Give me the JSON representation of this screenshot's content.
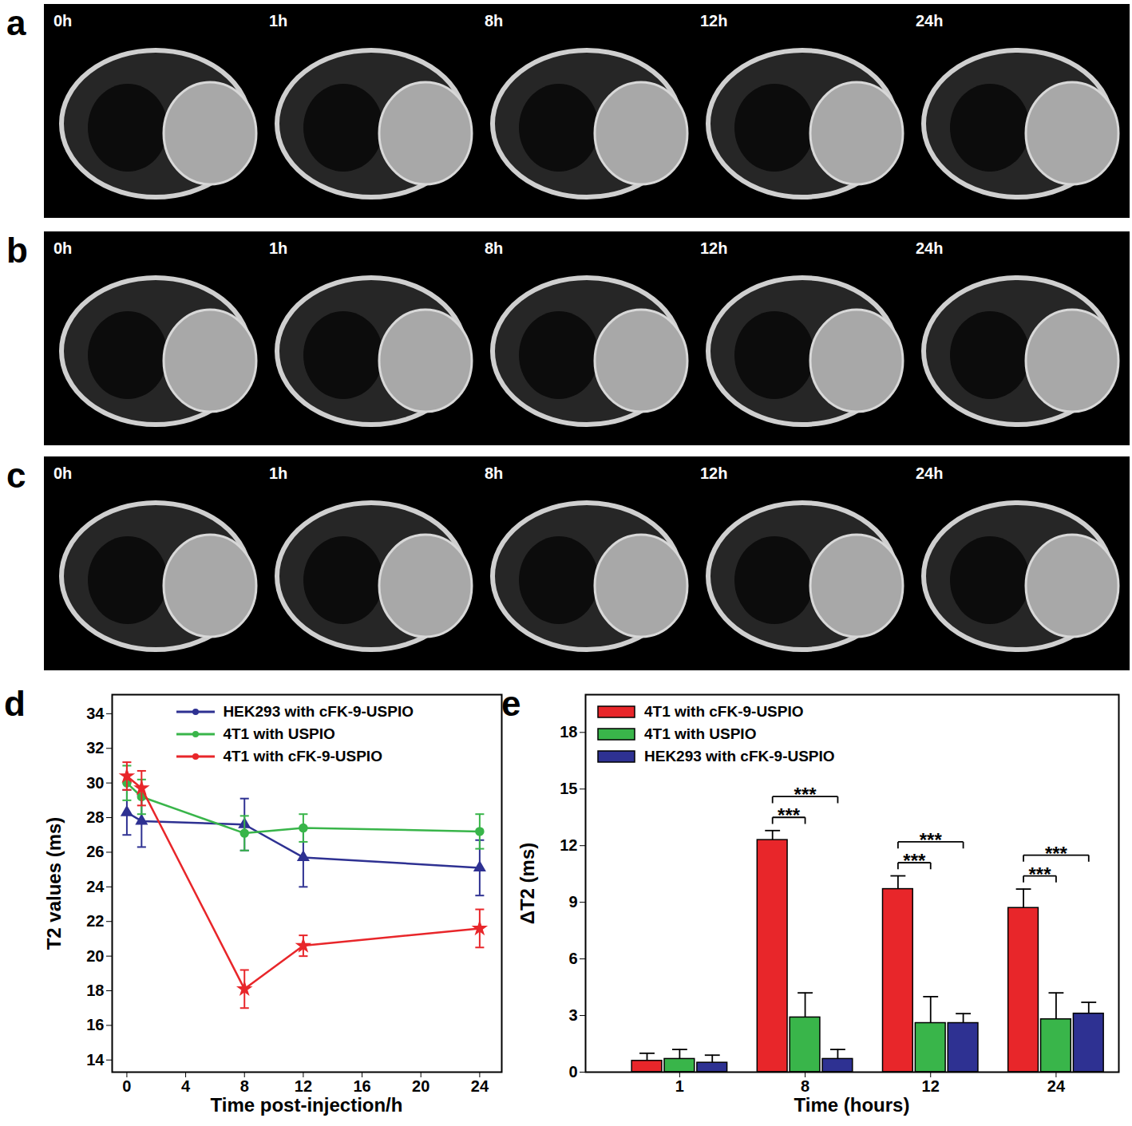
{
  "panels": [
    {
      "label": "a",
      "times": [
        "0h",
        "1h",
        "8h",
        "12h",
        "24h"
      ]
    },
    {
      "label": "b",
      "times": [
        "0h",
        "1h",
        "8h",
        "12h",
        "24h"
      ]
    },
    {
      "label": "c",
      "times": [
        "0h",
        "1h",
        "8h",
        "12h",
        "24h"
      ]
    }
  ],
  "chart_data": [
    {
      "panel": "d",
      "type": "line",
      "x": [
        0,
        1,
        8,
        12,
        24
      ],
      "xlim": [
        -1,
        25.5
      ],
      "xticks": [
        0,
        4,
        8,
        12,
        16,
        20,
        24
      ],
      "ylim": [
        13.3,
        35.1
      ],
      "yticks": [
        14,
        16,
        18,
        20,
        22,
        24,
        26,
        28,
        30,
        32,
        34
      ],
      "xlabel": "Time post-injection/h",
      "ylabel": "T2 values (ms)",
      "legend": "upper right",
      "series": [
        {
          "name": "HEK293 with cFK-9-USPIO",
          "color": "#2e3192",
          "marker": "triangle",
          "values": [
            28.3,
            27.8,
            27.6,
            25.7,
            25.1
          ],
          "errors": [
            1.3,
            1.5,
            1.5,
            1.7,
            1.6
          ]
        },
        {
          "name": "4T1 with USPIO",
          "color": "#39b54a",
          "marker": "circle",
          "values": [
            30.0,
            29.2,
            27.1,
            27.4,
            27.2
          ],
          "errors": [
            1.0,
            1.0,
            1.0,
            0.8,
            1.0
          ]
        },
        {
          "name": "4T1 with cFK-9-USPIO",
          "color": "#e8262a",
          "marker": "star",
          "values": [
            30.4,
            29.7,
            18.1,
            20.6,
            21.6
          ],
          "errors": [
            0.8,
            1.0,
            1.1,
            0.6,
            1.1
          ]
        }
      ]
    },
    {
      "panel": "e",
      "type": "bar",
      "categories": [
        "1",
        "8",
        "12",
        "24"
      ],
      "ylim": [
        0,
        20
      ],
      "yticks": [
        0,
        3,
        6,
        9,
        12,
        15,
        18
      ],
      "xlabel": "Time (hours)",
      "ylabel": "ΔT2 (ms)",
      "legend": "upper left",
      "series": [
        {
          "name": "4T1 with cFK-9-USPIO",
          "color": "#e8262a",
          "values": [
            0.6,
            12.3,
            9.7,
            8.7
          ],
          "errors": [
            0.4,
            0.5,
            0.7,
            1.0
          ]
        },
        {
          "name": "4T1 with USPIO",
          "color": "#39b54a",
          "values": [
            0.7,
            2.9,
            2.6,
            2.8
          ],
          "errors": [
            0.5,
            1.3,
            1.4,
            1.4
          ]
        },
        {
          "name": "HEK293 with cFK-9-USPIO",
          "color": "#2e3192",
          "values": [
            0.5,
            0.7,
            2.6,
            3.1
          ],
          "errors": [
            0.4,
            0.5,
            0.5,
            0.6
          ]
        }
      ],
      "annotations": [
        {
          "category": "8",
          "from": "4T1 with cFK-9-USPIO",
          "to": "4T1 with USPIO",
          "text": "***"
        },
        {
          "category": "8",
          "from": "4T1 with cFK-9-USPIO",
          "to": "HEK293 with cFK-9-USPIO",
          "text": "***"
        },
        {
          "category": "12",
          "from": "4T1 with cFK-9-USPIO",
          "to": "4T1 with USPIO",
          "text": "***"
        },
        {
          "category": "12",
          "from": "4T1 with cFK-9-USPIO",
          "to": "HEK293 with cFK-9-USPIO",
          "text": "***"
        },
        {
          "category": "24",
          "from": "4T1 with cFK-9-USPIO",
          "to": "4T1 with USPIO",
          "text": "***"
        },
        {
          "category": "24",
          "from": "4T1 with cFK-9-USPIO",
          "to": "HEK293 with cFK-9-USPIO",
          "text": "***"
        }
      ]
    }
  ]
}
